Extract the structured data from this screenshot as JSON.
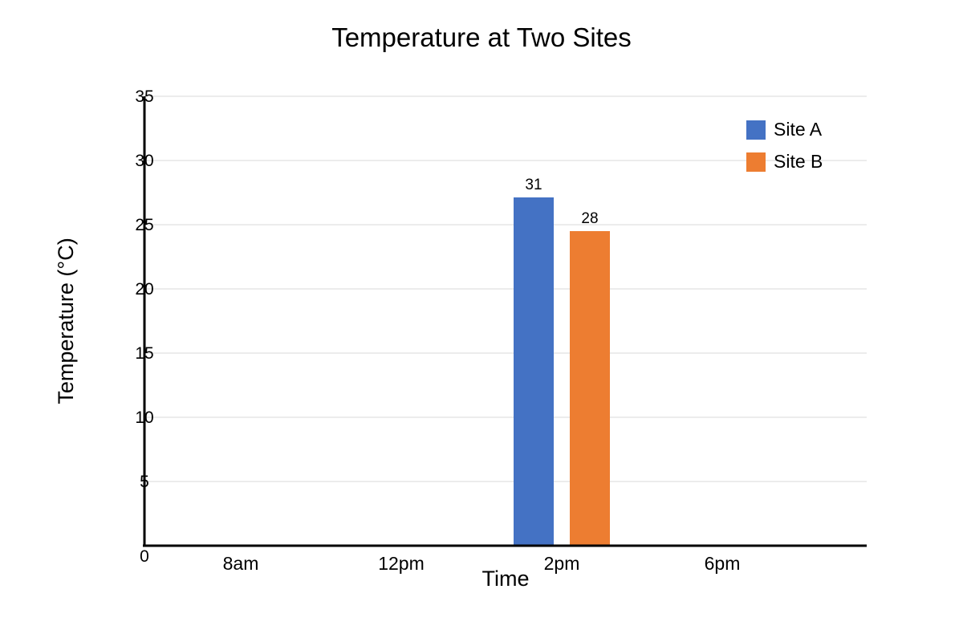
{
  "chart_data": {
    "type": "bar",
    "title": "Temperature at Two Sites",
    "xlabel": "Time",
    "ylabel": "Temperature (°C)",
    "categories": [
      "8am",
      "12pm",
      "2pm",
      "6pm"
    ],
    "series": [
      {
        "name": "Site A",
        "color": "#4472c4",
        "values": [
          null,
          null,
          31,
          null
        ],
        "labels": [
          null,
          null,
          "31",
          null
        ]
      },
      {
        "name": "Site B",
        "color": "#ed7d31",
        "values": [
          null,
          null,
          28,
          null
        ],
        "labels": [
          null,
          null,
          "28",
          null
        ]
      }
    ],
    "ylim": [
      0,
      35
    ],
    "yticks": [
      0,
      5,
      10,
      15,
      20,
      25,
      30,
      35
    ],
    "grid": true,
    "legend": "top-right"
  }
}
